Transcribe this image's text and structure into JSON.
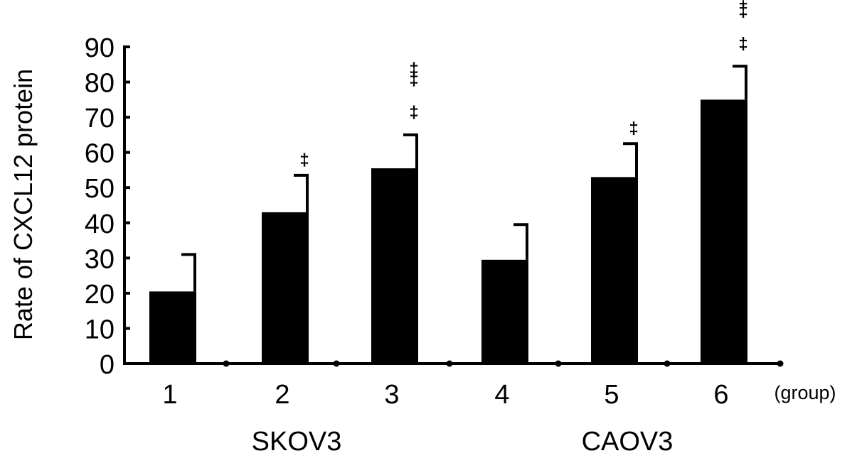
{
  "chart_data": {
    "type": "bar",
    "title": "",
    "ylabel": "Rate of CXCL12 protein",
    "xunit_label": "(group)",
    "ylim": [
      0,
      90
    ],
    "yticks": [
      0,
      10,
      20,
      30,
      40,
      50,
      60,
      70,
      80,
      90
    ],
    "categories": [
      "1",
      "2",
      "3",
      "4",
      "5",
      "6"
    ],
    "values": [
      20.5,
      43,
      55.5,
      29.5,
      53,
      75
    ],
    "error_upper": [
      31,
      53.5,
      65,
      39.5,
      62.5,
      84.5
    ],
    "significance": [
      {
        "category": "2",
        "markers": [
          "‡"
        ]
      },
      {
        "category": "3",
        "markers": [
          "‡",
          "‡",
          "‡"
        ]
      },
      {
        "category": "5",
        "markers": [
          "‡"
        ]
      },
      {
        "category": "6",
        "markers": [
          "‡",
          "‡",
          "‡"
        ]
      }
    ],
    "groups": [
      {
        "label": "SKOV3",
        "categories": [
          "1",
          "2",
          "3"
        ]
      },
      {
        "label": "CAOV3",
        "categories": [
          "4",
          "5",
          "6"
        ]
      }
    ],
    "colors": {
      "bar": "#000000",
      "axis": "#000000"
    },
    "grid": false,
    "legend": "none"
  }
}
